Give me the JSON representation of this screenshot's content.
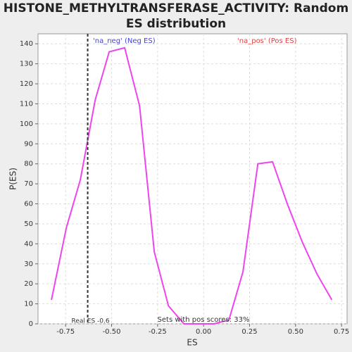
{
  "chart_data": {
    "type": "line",
    "title": [
      "HISTONE_METHYLTRANSFERASE_ACTIVITY: Random",
      "ES distribution"
    ],
    "x_label": "ES",
    "y_label": "P(ES)",
    "x": [
      -0.827,
      -0.746,
      -0.67,
      -0.589,
      -0.513,
      -0.429,
      -0.348,
      -0.268,
      -0.191,
      -0.107,
      -0.027,
      0.057,
      0.138,
      0.214,
      0.295,
      0.375,
      0.455,
      0.536,
      0.616,
      0.697
    ],
    "series": [
      {
        "name": "P(ES)",
        "color": "#ee44ee",
        "values": [
          12,
          48,
          72,
          112,
          136,
          138,
          109,
          36,
          9,
          0,
          0,
          0,
          2,
          26,
          80,
          81,
          60,
          41,
          25,
          12
        ]
      }
    ],
    "xlim": [
      -0.9,
      0.78
    ],
    "ylim": [
      0,
      145
    ],
    "xticks": [
      -0.75,
      {
        "value": -0.5,
        "label": "-0.50"
      },
      -0.25,
      {
        "value": 0,
        "label": "0.00"
      },
      0.25,
      {
        "value": 0.5,
        "label": "0.50"
      },
      0.75
    ],
    "yticks": [
      0,
      10,
      20,
      30,
      40,
      50,
      60,
      70,
      80,
      90,
      100,
      110,
      120,
      130,
      140
    ],
    "grid": true,
    "real_es": {
      "value": -0.63,
      "label": "Real ES -0.6"
    },
    "annotations": [
      {
        "text": "'na_neg' (Neg ES)",
        "color": "#4444cc"
      },
      {
        "text": "'na_pos' (Pos ES)",
        "color": "#dd4444"
      },
      {
        "text": "Sets with pos scores: 33%",
        "color": "#333333"
      }
    ]
  }
}
